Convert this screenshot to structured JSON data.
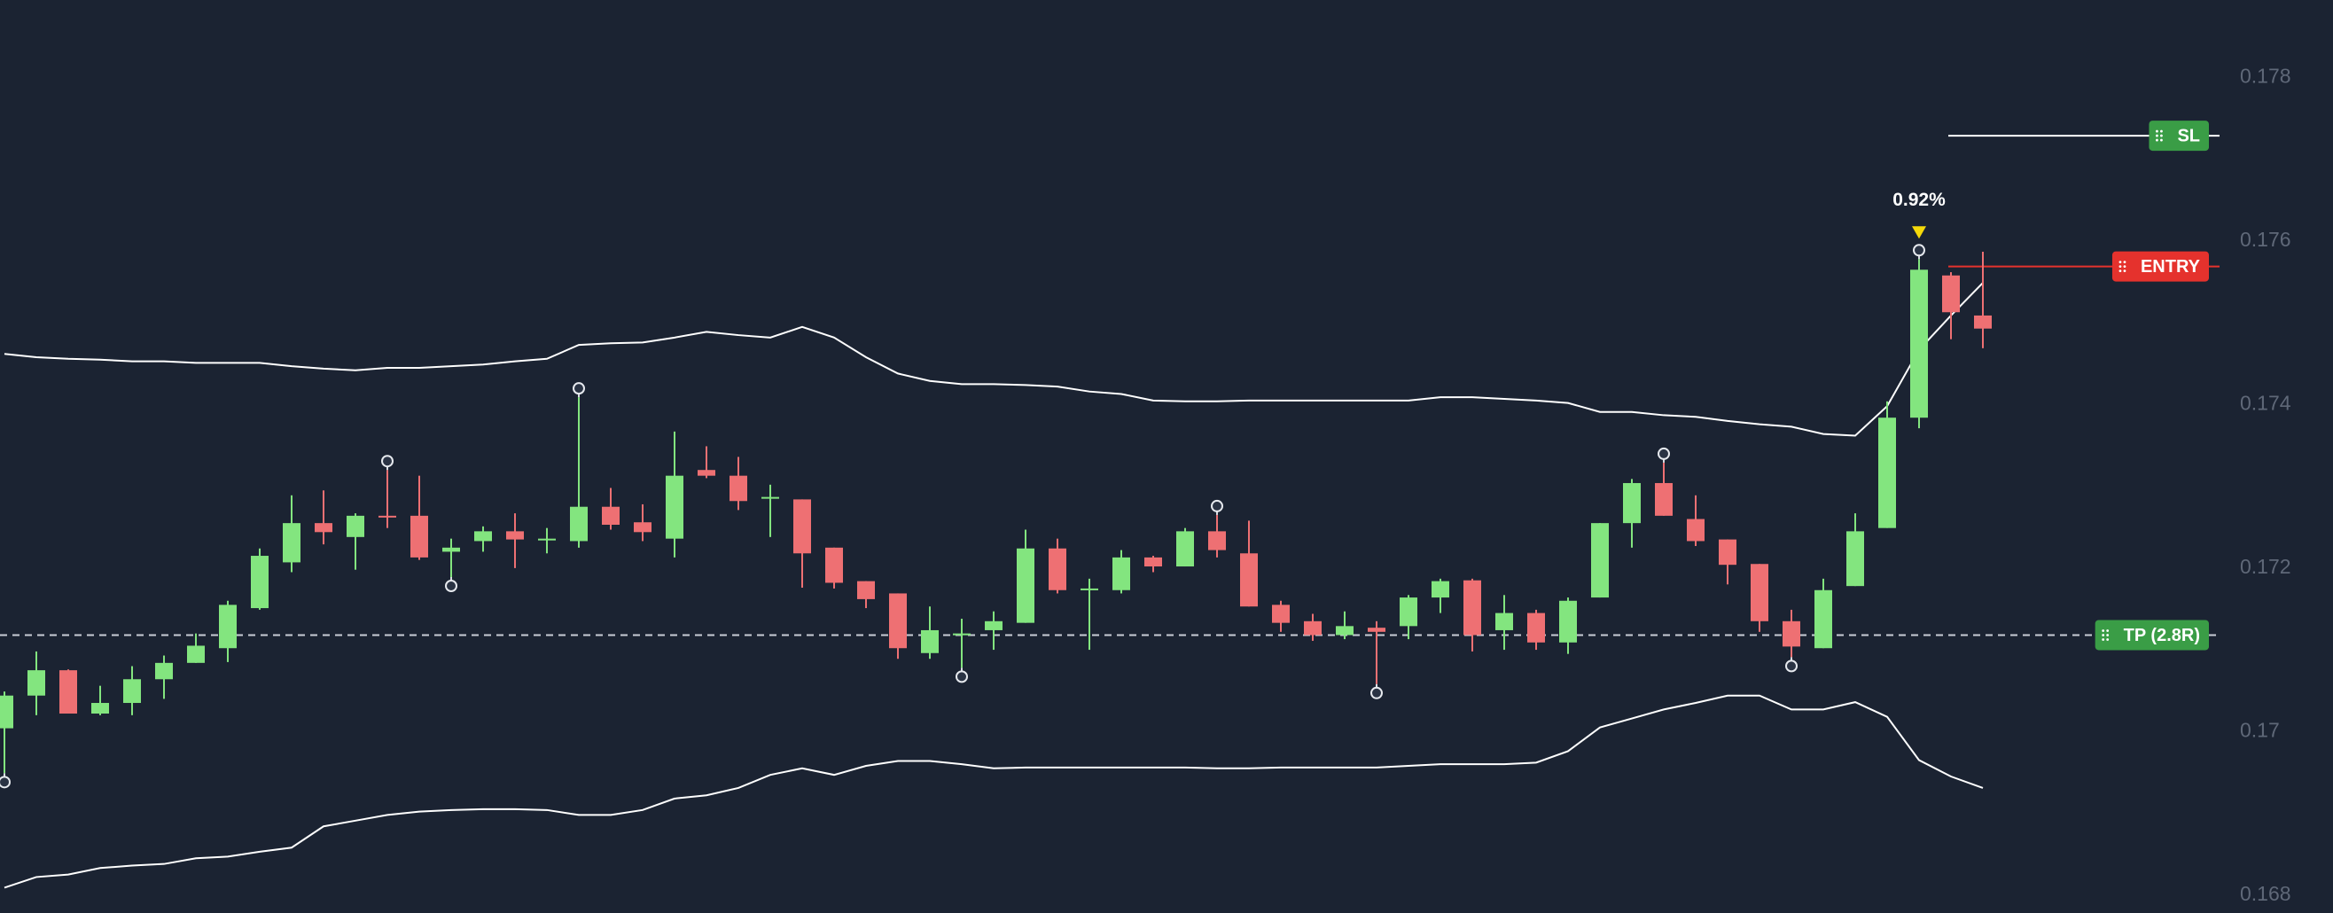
{
  "chart_data": {
    "type": "candlestick",
    "background": "#1b2332",
    "up_color": "#83e57f",
    "down_color": "#ee7073",
    "band_color": "#ffffff",
    "categories": [
      null,
      null,
      null,
      null,
      null,
      null,
      null,
      null,
      null,
      null,
      null,
      null,
      null,
      null,
      null,
      null,
      null,
      null,
      null,
      null,
      null,
      null,
      null,
      null,
      null,
      null,
      null,
      null,
      null,
      null,
      null,
      null,
      null,
      null,
      null,
      null,
      null,
      null,
      null,
      null,
      null,
      null,
      null,
      null,
      null,
      null,
      null,
      null,
      null,
      null,
      null,
      null,
      null,
      null,
      null,
      null,
      null,
      null,
      null,
      null,
      null,
      null,
      null
    ],
    "open": [
      0.17004,
      0.17044,
      0.17075,
      0.17022,
      0.17035,
      0.17064,
      0.17084,
      0.17102,
      0.17151,
      0.17207,
      0.17255,
      0.17238,
      0.17264,
      0.17264,
      0.1722,
      0.17233,
      0.17245,
      0.17235,
      0.17233,
      0.17275,
      0.17256,
      0.17236,
      0.1732,
      0.17313,
      0.17287,
      0.17284,
      0.17225,
      0.17184,
      0.17169,
      0.17096,
      0.1712,
      0.17124,
      0.17133,
      0.17224,
      0.17175,
      0.17173,
      0.17213,
      0.17202,
      0.17245,
      0.17218,
      0.17155,
      0.17135,
      0.17118,
      0.17127,
      0.17129,
      0.17164,
      0.17185,
      0.17124,
      0.17145,
      0.17109,
      0.17164,
      0.17255,
      0.17304,
      0.1726,
      0.17235,
      0.17205,
      0.17135,
      0.17102,
      0.17178,
      0.17249,
      0.17384,
      0.17558,
      0.17509
    ],
    "high": [
      0.17049,
      0.17098,
      0.17076,
      0.17056,
      0.1708,
      0.17093,
      0.1712,
      0.1716,
      0.17224,
      0.17289,
      0.17295,
      0.17267,
      0.1732,
      0.17313,
      0.17236,
      0.17251,
      0.17267,
      0.17249,
      0.17409,
      0.17298,
      0.17278,
      0.17367,
      0.17349,
      0.17336,
      0.17302,
      0.17284,
      0.17225,
      0.17184,
      0.17169,
      0.17153,
      0.17138,
      0.17147,
      0.17247,
      0.17236,
      0.17187,
      0.17222,
      0.17215,
      0.17249,
      0.17265,
      0.17258,
      0.1716,
      0.17144,
      0.17147,
      0.17135,
      0.17167,
      0.17187,
      0.17187,
      0.17167,
      0.17149,
      0.17164,
      0.17255,
      0.17309,
      0.17329,
      0.17289,
      0.17235,
      0.17205,
      0.17149,
      0.17187,
      0.17267,
      0.17404,
      0.17578,
      0.17562,
      0.17587
    ],
    "low": [
      0.16949,
      0.1702,
      0.17022,
      0.1702,
      0.1702,
      0.1704,
      0.17084,
      0.17085,
      0.17149,
      0.17195,
      0.17229,
      0.17198,
      0.17249,
      0.1721,
      0.17189,
      0.1722,
      0.172,
      0.17218,
      0.17225,
      0.17247,
      0.17233,
      0.17213,
      0.1731,
      0.17271,
      0.17238,
      0.17176,
      0.17175,
      0.17151,
      0.17089,
      0.17089,
      0.17078,
      0.171,
      0.17133,
      0.17169,
      0.171,
      0.17169,
      0.17195,
      0.17202,
      0.17213,
      0.17153,
      0.17122,
      0.17111,
      0.17113,
      0.17058,
      0.17113,
      0.17145,
      0.17098,
      0.171,
      0.171,
      0.17095,
      0.17164,
      0.17225,
      0.17264,
      0.17227,
      0.1718,
      0.17122,
      0.17091,
      0.17102,
      0.17178,
      0.17249,
      0.17371,
      0.1748,
      0.17469
    ],
    "close": [
      0.17044,
      0.17075,
      0.17022,
      0.17035,
      0.17064,
      0.17084,
      0.17105,
      0.17155,
      0.17215,
      0.17255,
      0.17244,
      0.17264,
      0.17262,
      0.17213,
      0.17225,
      0.17245,
      0.17235,
      0.17236,
      0.17275,
      0.17253,
      0.17244,
      0.17313,
      0.17313,
      0.17282,
      0.17287,
      0.17218,
      0.17182,
      0.17162,
      0.17102,
      0.17124,
      0.1712,
      0.17135,
      0.17224,
      0.17173,
      0.17175,
      0.17213,
      0.17202,
      0.17245,
      0.17222,
      0.17153,
      0.17133,
      0.17118,
      0.17129,
      0.17122,
      0.17164,
      0.17184,
      0.17118,
      0.17145,
      0.17109,
      0.1716,
      0.17255,
      0.17304,
      0.17264,
      0.17233,
      0.17204,
      0.17135,
      0.17104,
      0.17173,
      0.17245,
      0.17384,
      0.17565,
      0.17513,
      0.17493
    ],
    "upper_band": [
      0.17462,
      0.17458,
      0.17456,
      0.17455,
      0.17453,
      0.17453,
      0.17451,
      0.17451,
      0.17451,
      0.17447,
      0.17444,
      0.17442,
      0.17445,
      0.17445,
      0.17447,
      0.17449,
      0.17453,
      0.17456,
      0.17473,
      0.17475,
      0.17476,
      0.17482,
      0.17489,
      0.17485,
      0.17482,
      0.17495,
      0.17482,
      0.17458,
      0.17438,
      0.17429,
      0.17425,
      0.17425,
      0.17424,
      0.17422,
      0.17416,
      0.17413,
      0.17405,
      0.17404,
      0.17404,
      0.17405,
      0.17405,
      0.17405,
      0.17405,
      0.17405,
      0.17405,
      0.17409,
      0.17409,
      0.17407,
      0.17405,
      0.17402,
      0.17391,
      0.17391,
      0.17387,
      0.17385,
      0.1738,
      0.17376,
      0.17373,
      0.17364,
      0.17362,
      0.17398,
      0.17467,
      0.17509,
      0.17549
    ],
    "lower_band": [
      0.16809,
      0.16822,
      0.16825,
      0.16833,
      0.16836,
      0.16838,
      0.16845,
      0.16847,
      0.16853,
      0.16858,
      0.16884,
      0.16891,
      0.16898,
      0.16902,
      0.16904,
      0.16905,
      0.16905,
      0.16904,
      0.16898,
      0.16898,
      0.16904,
      0.16918,
      0.16922,
      0.16931,
      0.16947,
      0.16955,
      0.16947,
      0.16958,
      0.16964,
      0.16964,
      0.1696,
      0.16955,
      0.16956,
      0.16956,
      0.16956,
      0.16956,
      0.16956,
      0.16956,
      0.16955,
      0.16955,
      0.16956,
      0.16956,
      0.16956,
      0.16956,
      0.16958,
      0.1696,
      0.1696,
      0.1696,
      0.16962,
      0.16976,
      0.17005,
      0.17016,
      0.17027,
      0.17035,
      0.17044,
      0.17044,
      0.17027,
      0.17027,
      0.17036,
      0.17018,
      0.16965,
      0.16945,
      0.16931
    ],
    "high_markers": [
      12,
      18,
      38,
      52,
      60
    ],
    "low_markers": [
      0,
      14,
      30,
      43,
      56
    ],
    "annotation": {
      "text": "0.92%",
      "index": 60,
      "color": "#f5d90a"
    },
    "levels": [
      {
        "label": "SL",
        "value": 0.17729,
        "color": "#3a9d46",
        "line_color": "#ffffff",
        "dashed": false,
        "full_width": false
      },
      {
        "label": "ENTRY",
        "value": 0.17569,
        "color": "#e5322d",
        "line_color": "#e5322d",
        "dashed": false,
        "full_width": false
      },
      {
        "label": "TP (2.8R)",
        "value": 0.17118,
        "color": "#3a9d46",
        "line_color": "#c9ced6",
        "dashed": true,
        "full_width": true
      }
    ],
    "ylim": [
      0.16778,
      0.17895
    ],
    "yticks": [
      0.168,
      0.17,
      0.172,
      0.174,
      0.176,
      0.178
    ]
  }
}
